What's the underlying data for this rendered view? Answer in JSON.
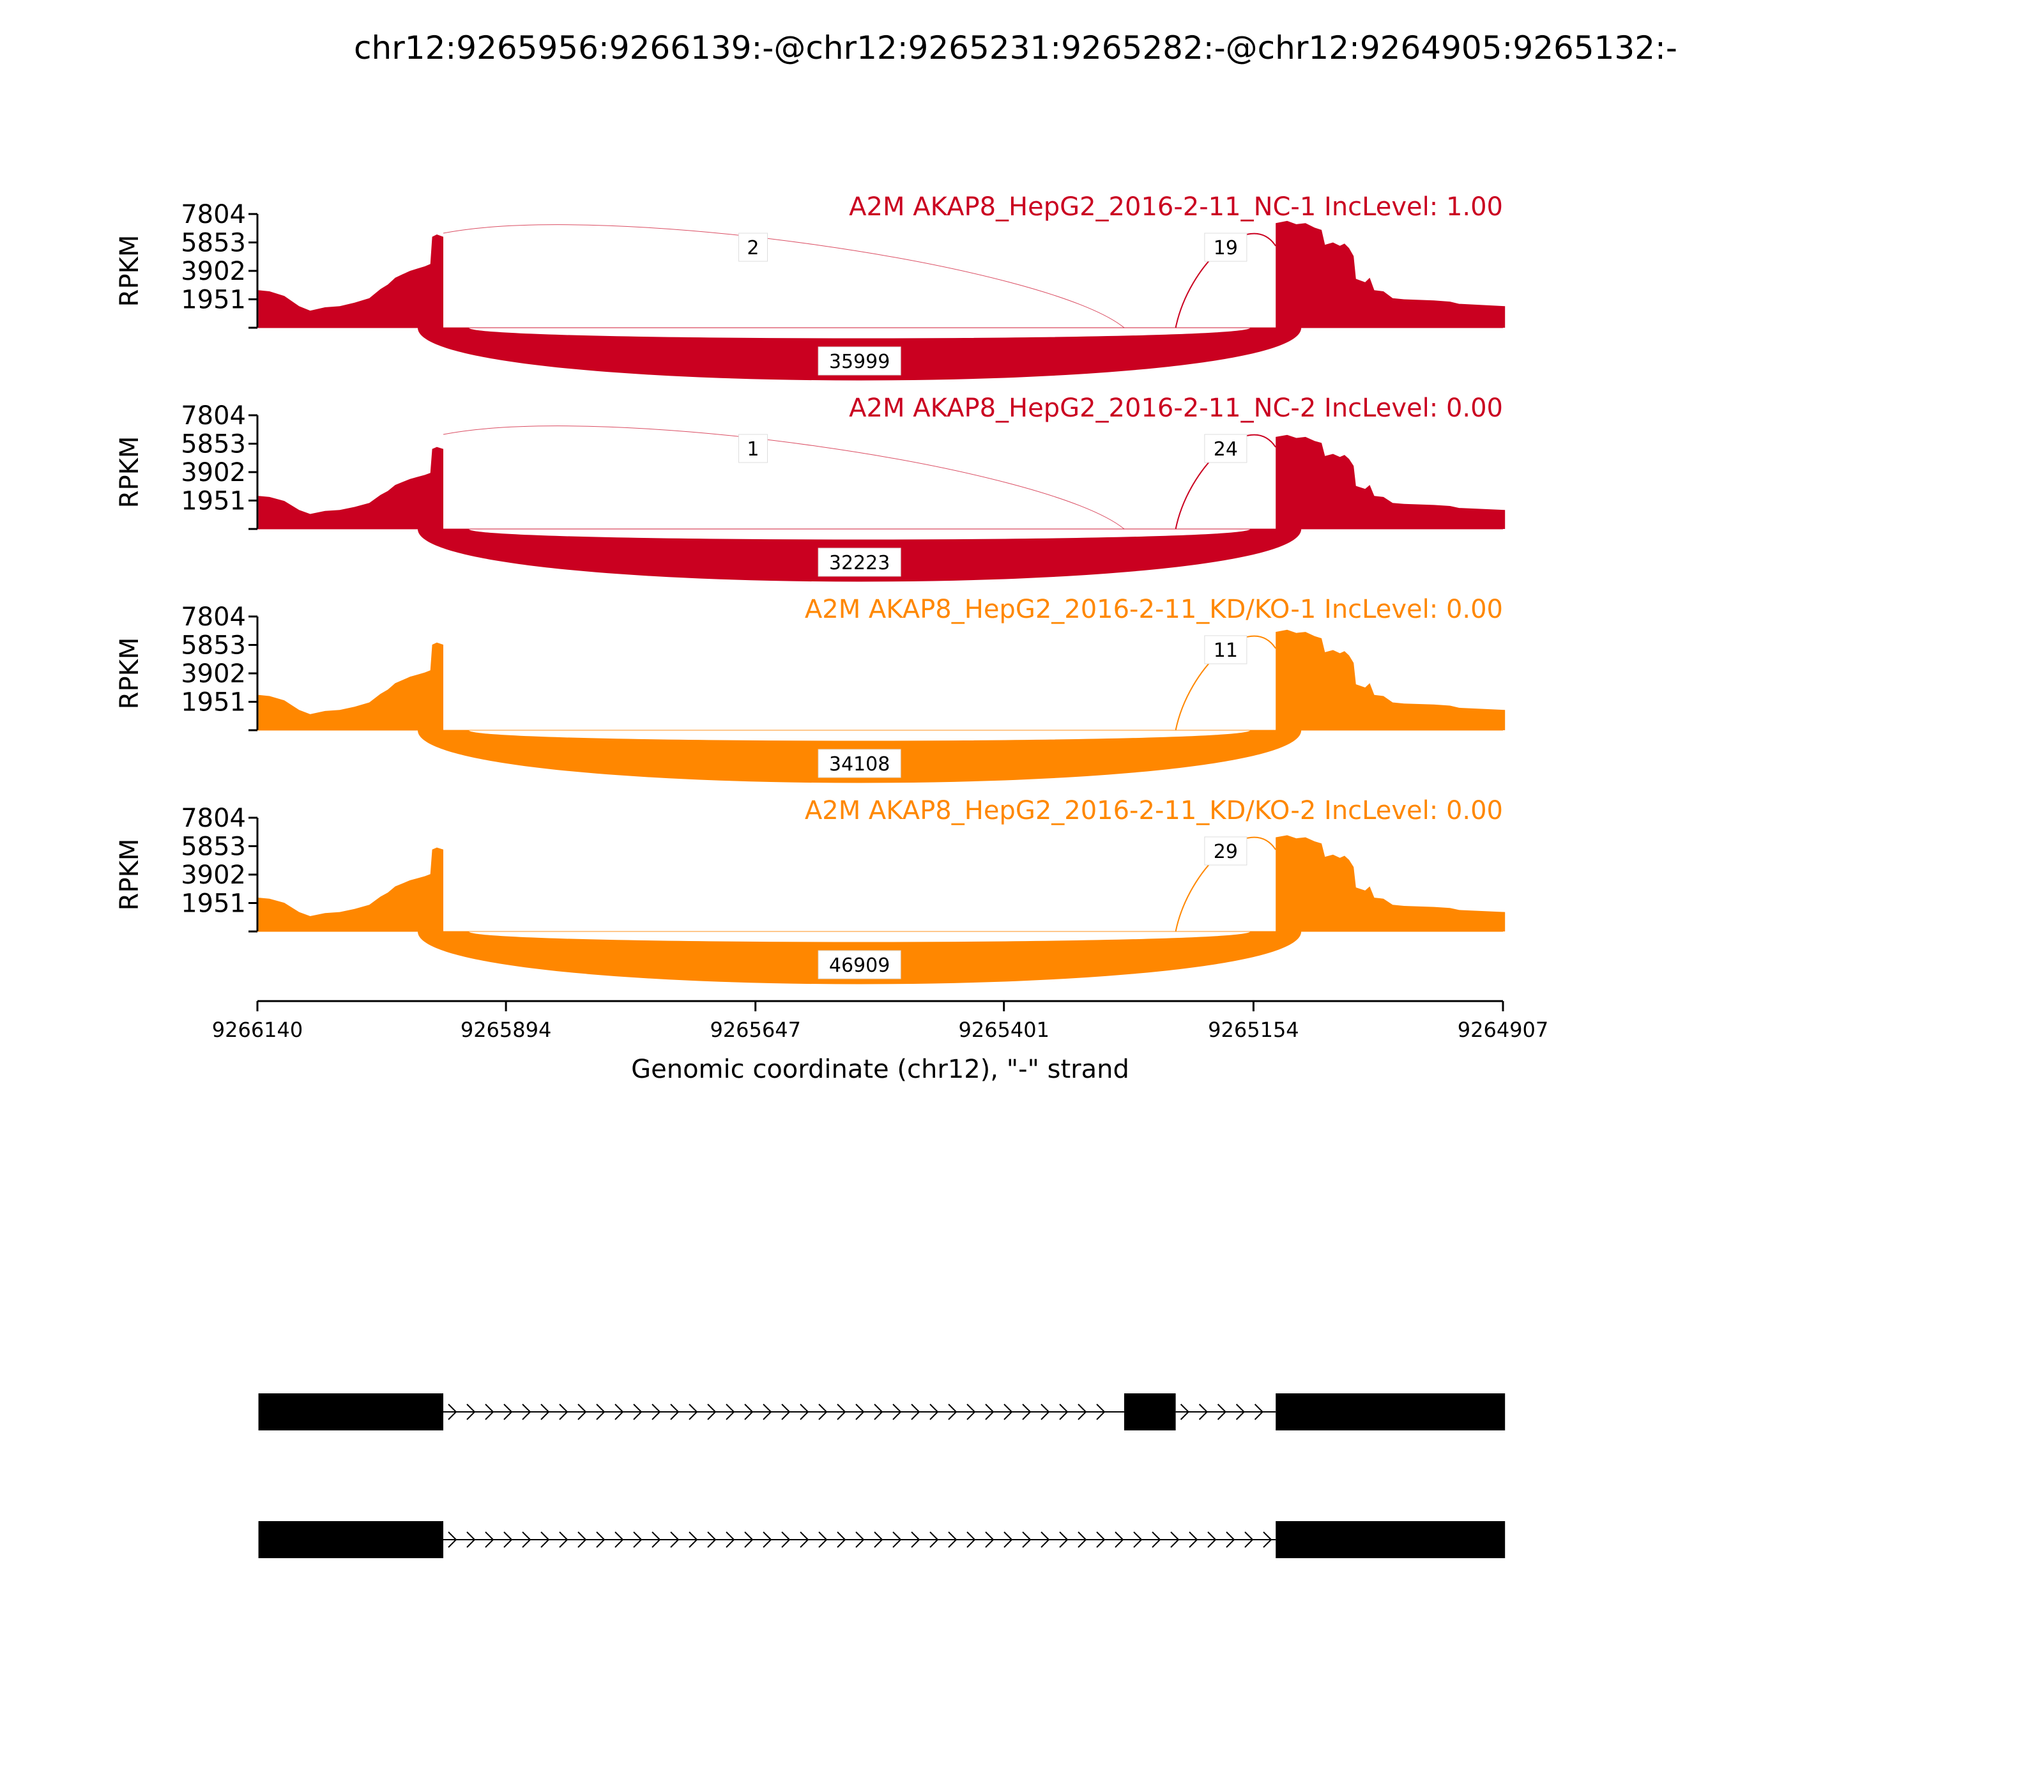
{
  "title": "chr12:9265956:9266139:-@chr12:9265231:9265282:-@chr12:9264905:9265132:-",
  "chart_data": {
    "type": "area",
    "ylabel": "RPKM",
    "xlabel": "Genomic coordinate (chr12), \"-\" strand",
    "ylim": [
      0,
      7804
    ],
    "y_ticks": [
      "7804",
      "5853",
      "3902",
      "1951"
    ],
    "x_ticks": [
      "9266140",
      "9265894",
      "9265647",
      "9265401",
      "9265154",
      "9264907"
    ],
    "x_range": [
      9266140,
      9264907
    ],
    "exons": [
      {
        "start": 9266139,
        "end": 9265956
      },
      {
        "start": 9265282,
        "end": 9265231
      },
      {
        "start": 9265132,
        "end": 9264905
      }
    ],
    "tracks": [
      {
        "label": "A2M AKAP8_HepG2_2016-2-11_NC-1 IncLevel: 1.00",
        "color": "#ca0020",
        "coverage_scale": 1.0,
        "junctions": {
          "exon1_exon2": "2",
          "exon2_exon3": "19",
          "exon1_exon3": "35999"
        }
      },
      {
        "label": "A2M AKAP8_HepG2_2016-2-11_NC-2 IncLevel: 0.00",
        "color": "#ca0020",
        "coverage_scale": 0.88,
        "junctions": {
          "exon1_exon2": "1",
          "exon2_exon3": "24",
          "exon1_exon3": "32223"
        }
      },
      {
        "label": "A2M AKAP8_HepG2_2016-2-11_KD/KO-1 IncLevel: 0.00",
        "color": "#ff8700",
        "coverage_scale": 0.94,
        "junctions": {
          "exon2_exon3": "11",
          "exon1_exon3": "34108"
        }
      },
      {
        "label": "A2M AKAP8_HepG2_2016-2-11_KD/KO-2 IncLevel: 0.00",
        "color": "#ff8700",
        "coverage_scale": 0.9,
        "junctions": {
          "exon2_exon3": "29",
          "exon1_exon3": "46909"
        }
      }
    ],
    "isoforms": [
      {
        "exons": [
          0,
          1,
          2
        ]
      },
      {
        "exons": [
          0,
          2
        ]
      }
    ]
  }
}
